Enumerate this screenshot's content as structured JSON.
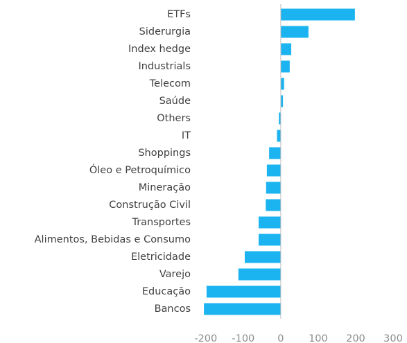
{
  "chart_data": {
    "type": "bar",
    "orientation": "horizontal",
    "categories": [
      "ETFs",
      "Siderurgia",
      "Index hedge",
      "Industrials",
      "Telecom",
      "Saúde",
      "Others",
      "IT",
      "Shoppings",
      "Óleo e Petroquímico",
      "Mineração",
      "Construção Civil",
      "Transportes",
      "Alimentos, Bebidas e Consumo",
      "Eletricidade",
      "Varejo",
      "Educação",
      "Bancos"
    ],
    "values": [
      198,
      74,
      28,
      24,
      9,
      6,
      -5,
      -10,
      -31,
      -37,
      -39,
      -40,
      -59,
      -59,
      -96,
      -113,
      -198,
      -205
    ],
    "color": "#1cb4f0",
    "xlim": [
      -220,
      300
    ],
    "xticks": [
      -200,
      -100,
      0,
      100,
      200,
      300
    ]
  }
}
